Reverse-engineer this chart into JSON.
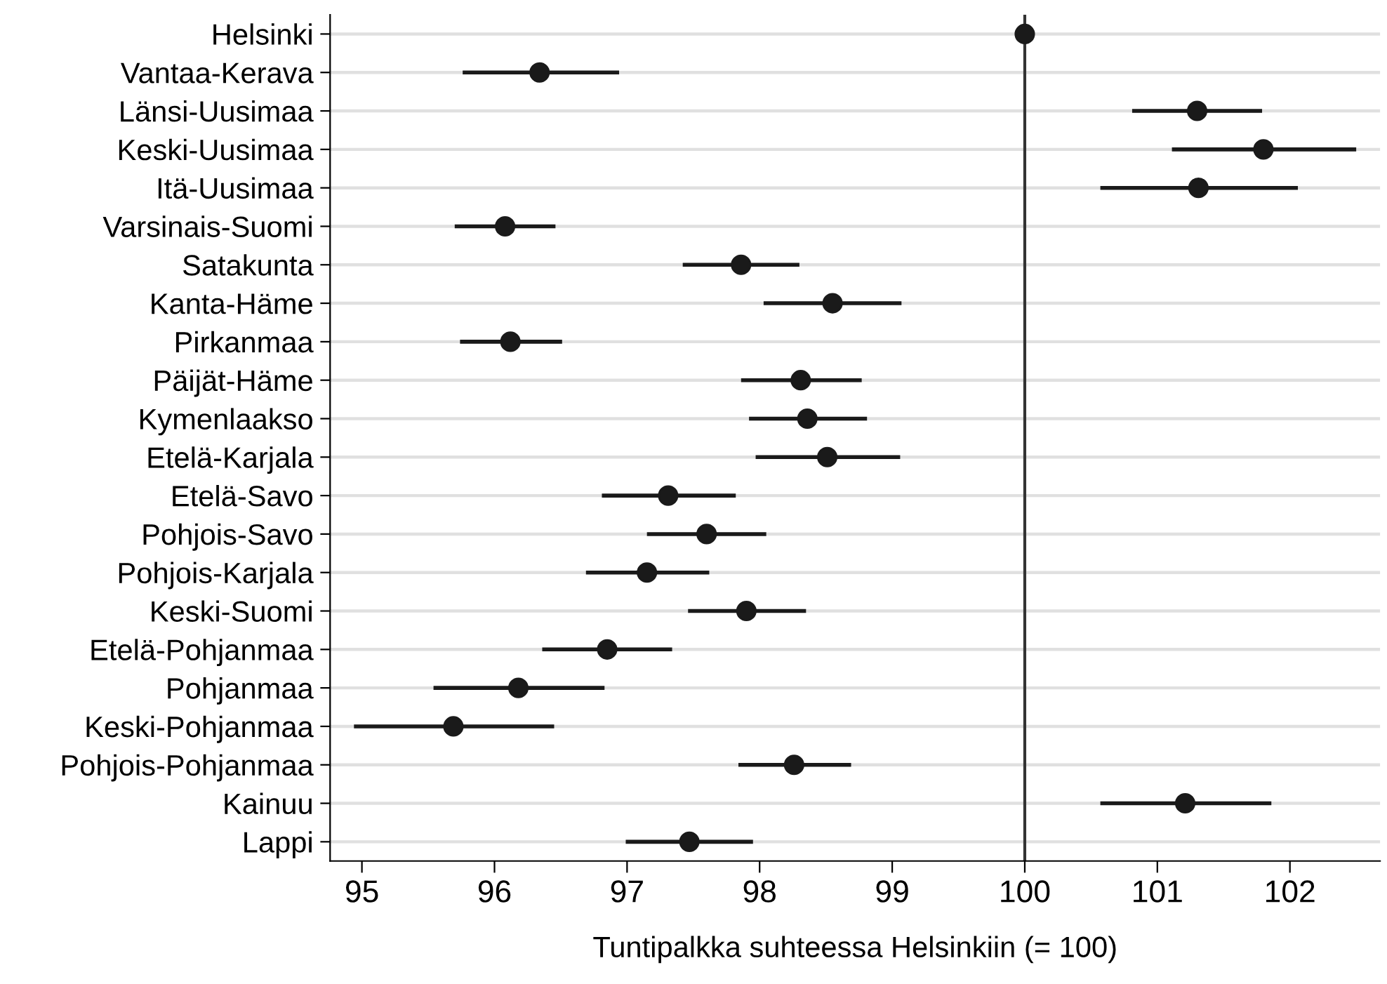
{
  "chart_data": {
    "type": "scatter",
    "orientation": "horizontal",
    "xlabel": "Tuntipalkka suhteessa Helsinkiin (= 100)",
    "categories": [
      "Helsinki",
      "Vantaa-Kerava",
      "Länsi-Uusimaa",
      "Keski-Uusimaa",
      "Itä-Uusimaa",
      "Varsinais-Suomi",
      "Satakunta",
      "Kanta-Häme",
      "Pirkanmaa",
      "Päijät-Häme",
      "Kymenlaakso",
      "Etelä-Karjala",
      "Etelä-Savo",
      "Pohjois-Savo",
      "Pohjois-Karjala",
      "Keski-Suomi",
      "Etelä-Pohjanmaa",
      "Pohjanmaa",
      "Keski-Pohjanmaa",
      "Pohjois-Pohjanmaa",
      "Kainuu",
      "Lappi"
    ],
    "values": [
      100,
      96.34,
      101.3,
      101.8,
      101.31,
      96.08,
      97.86,
      98.55,
      96.12,
      98.31,
      98.36,
      98.51,
      97.31,
      97.6,
      97.15,
      97.9,
      96.85,
      96.18,
      95.69,
      98.26,
      101.21,
      97.47
    ],
    "errors": [
      null,
      [
        95.76,
        96.94
      ],
      [
        100.81,
        101.79
      ],
      [
        101.11,
        102.5
      ],
      [
        100.57,
        102.06
      ],
      [
        95.7,
        96.46
      ],
      [
        97.42,
        98.3
      ],
      [
        98.03,
        99.07
      ],
      [
        95.74,
        96.51
      ],
      [
        97.86,
        98.77
      ],
      [
        97.92,
        98.81
      ],
      [
        97.97,
        99.06
      ],
      [
        96.81,
        97.82
      ],
      [
        97.15,
        98.05
      ],
      [
        96.69,
        97.62
      ],
      [
        97.46,
        98.35
      ],
      [
        96.36,
        97.34
      ],
      [
        95.54,
        96.83
      ],
      [
        94.94,
        96.45
      ],
      [
        97.84,
        98.69
      ],
      [
        100.57,
        101.86
      ],
      [
        96.99,
        97.95
      ]
    ],
    "color": "#1a1a1a",
    "marker": "circle",
    "grid": "y",
    "xlim": [
      94.76,
      102.68
    ],
    "xticks": [
      95,
      96,
      97,
      98,
      99,
      100,
      101,
      102
    ],
    "ref_lines": [
      {
        "axis": "x",
        "value": 100,
        "color": "#333333"
      }
    ]
  }
}
